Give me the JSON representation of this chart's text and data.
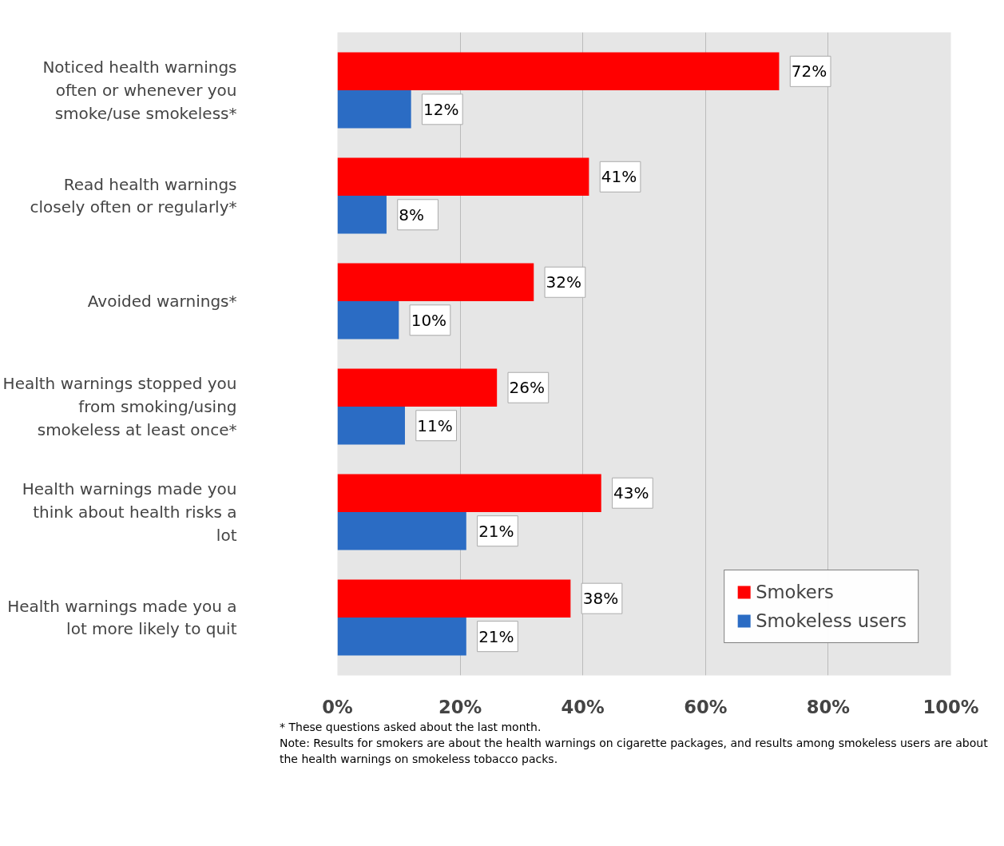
{
  "chart_data": {
    "type": "bar",
    "orientation": "horizontal",
    "categories": [
      "Noticed health warnings often or whenever you smoke/use smokeless*",
      "Read health warnings closely often or regularly*",
      "Avoided warnings*",
      "Health warnings stopped you from smoking/using smokeless at least once*",
      "Health warnings made you think about health risks a lot",
      "Health warnings made you a lot more likely to quit"
    ],
    "series": [
      {
        "name": "Smokers",
        "color": "#ff0000",
        "values": [
          72,
          41,
          32,
          26,
          43,
          38
        ],
        "value_labels": [
          "72%",
          "41%",
          "32%",
          "26%",
          "43%",
          "38%"
        ]
      },
      {
        "name": "Smokeless users",
        "color": "#2b6cc4",
        "values": [
          12,
          8,
          10,
          11,
          21,
          21
        ],
        "value_labels": [
          "12%",
          "8%",
          "10%",
          "11%",
          "21%",
          "21%"
        ]
      }
    ],
    "xlim": [
      0,
      100
    ],
    "xticks": [
      {
        "value": 0,
        "label": "0%"
      },
      {
        "value": 20,
        "label": "20%"
      },
      {
        "value": 40,
        "label": "40%"
      },
      {
        "value": 60,
        "label": "60%"
      },
      {
        "value": 80,
        "label": "80%"
      },
      {
        "value": 100,
        "label": "100%"
      }
    ],
    "grid": "x",
    "legend": "bottom right",
    "annotations": [
      "* These questions asked about the last month.",
      "Note: Results for smokers are about the health warnings on cigarette packages, and results among smokeless users are about the health warnings on smokeless tobacco packs."
    ]
  }
}
